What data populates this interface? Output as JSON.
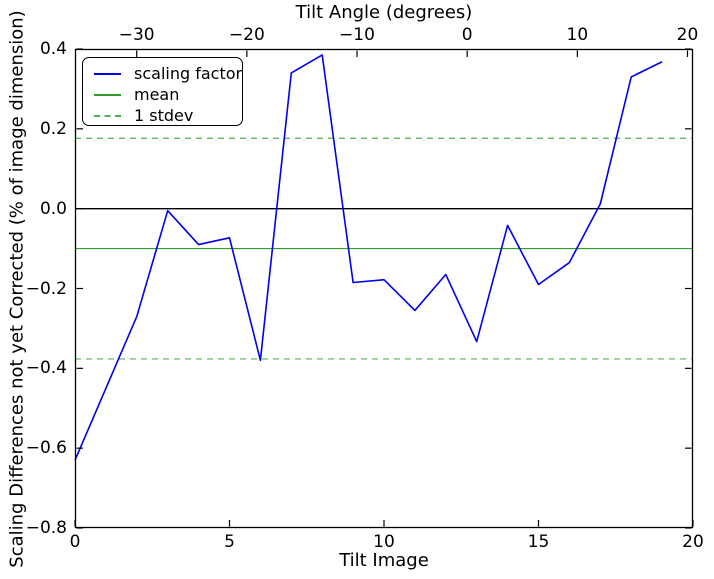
{
  "chart_data": {
    "type": "line",
    "title": "Tilt Angle (degrees)",
    "xlabel": "Tilt Image",
    "ylabel": "Scaling Differences not yet Corrected (% of image dimension)",
    "grid": false,
    "top_axis": {
      "label": "Tilt Angle (degrees)",
      "lim": [
        -35.6,
        20.5
      ],
      "ticks": [
        {
          "v": -30,
          "label": "−30"
        },
        {
          "v": -20,
          "label": "−20"
        },
        {
          "v": -10,
          "label": "−10"
        },
        {
          "v": 0,
          "label": "0"
        },
        {
          "v": 10,
          "label": "10"
        },
        {
          "v": 20,
          "label": "20"
        }
      ]
    },
    "x_axis": {
      "label": "Tilt Image",
      "lim": [
        0,
        20
      ],
      "ticks": [
        {
          "v": 0,
          "label": "0"
        },
        {
          "v": 5,
          "label": "5"
        },
        {
          "v": 10,
          "label": "10"
        },
        {
          "v": 15,
          "label": "15"
        },
        {
          "v": 20,
          "label": "20"
        }
      ]
    },
    "y_axis": {
      "label": "Scaling Differences not yet Corrected (% of image dimension)",
      "lim": [
        -0.8,
        0.4
      ],
      "ticks": [
        {
          "v": 0.4,
          "label": "0.4"
        },
        {
          "v": 0.2,
          "label": "0.2"
        },
        {
          "v": 0.0,
          "label": "0.0"
        },
        {
          "v": -0.2,
          "label": "−0.2"
        },
        {
          "v": -0.4,
          "label": "−0.4"
        },
        {
          "v": -0.6,
          "label": "−0.6"
        },
        {
          "v": -0.8,
          "label": "−0.8"
        }
      ]
    },
    "x": [
      0,
      1,
      2,
      3,
      4,
      5,
      6,
      7,
      8,
      9,
      10,
      11,
      12,
      13,
      14,
      15,
      16,
      17,
      18,
      19
    ],
    "series": [
      {
        "name": "scaling factor",
        "color": "#0000ee",
        "style": "solid",
        "values": [
          -0.63,
          -0.45,
          -0.27,
          -0.005,
          -0.09,
          -0.073,
          -0.38,
          0.34,
          0.385,
          -0.185,
          -0.178,
          -0.255,
          -0.165,
          -0.333,
          -0.042,
          -0.19,
          -0.135,
          0.012,
          0.33,
          0.368
        ]
      }
    ],
    "statistics": {
      "mean": -0.1,
      "stdev": 0.2765
    },
    "reference_lines": [
      {
        "name": "zero",
        "value": 0.0,
        "color": "#000000",
        "style": "solid"
      },
      {
        "name": "mean",
        "value": -0.1,
        "color": "#2e9e2e",
        "style": "solid"
      },
      {
        "name": "stdev-upper",
        "value": 0.1765,
        "color": "#54b054",
        "style": "dashed"
      },
      {
        "name": "stdev-lower",
        "value": -0.3765,
        "color": "#54b054",
        "style": "dashed"
      }
    ],
    "legend": {
      "position": "upper left",
      "items": [
        {
          "label": "scaling factor",
          "color": "#0000ee",
          "style": "solid"
        },
        {
          "label": "mean",
          "color": "#2e9e2e",
          "style": "solid"
        },
        {
          "label": "1 stdev",
          "color": "#54b054",
          "style": "dashed"
        }
      ]
    }
  }
}
